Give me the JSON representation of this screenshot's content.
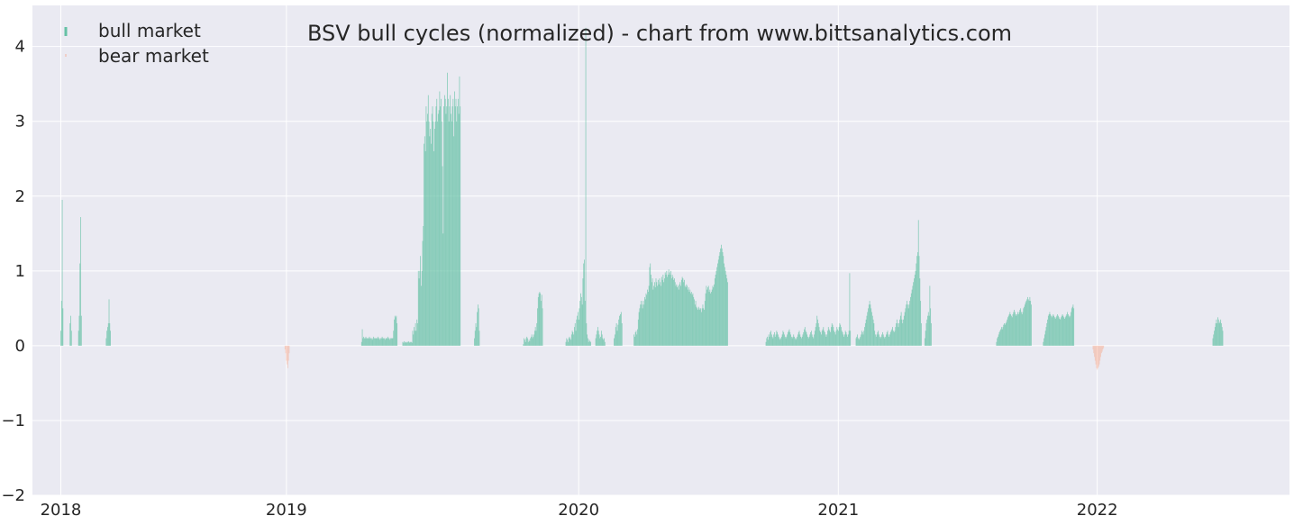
{
  "chart_data": {
    "type": "bar",
    "title": "BSV bull cycles (normalized)  - chart from www.bittsanalytics.com",
    "xlabel": "",
    "ylabel": "",
    "ylim": [
      -2,
      4.55
    ],
    "xlim": [
      "2017-11-22",
      "2022-09-29"
    ],
    "y_ticks": [
      -2,
      -1,
      0,
      1,
      2,
      3,
      4
    ],
    "y_tick_labels": [
      "−2",
      "−1",
      "0",
      "1",
      "2",
      "3",
      "4"
    ],
    "x_ticks": [
      "2018-01-01",
      "2018-11-15",
      "2020-01-01",
      "2021-01-01",
      "2022-01-01"
    ],
    "x_tick_labels": [
      "2018",
      "2019",
      "2020",
      "2021",
      "2022"
    ],
    "grid": true,
    "legend": {
      "placement": "top-left",
      "entries": [
        "bull market",
        "bear market"
      ]
    },
    "colors": {
      "background": "#EAEAF2",
      "grid": "#FFFFFF",
      "bull": "#66C2A5",
      "bear": "#FC8D62",
      "text": "#262626"
    },
    "series": [
      {
        "name": "bull market",
        "segments": [
          {
            "start": "2018-01-01",
            "end": "2018-01-04",
            "values": [
              0.2,
              0.6,
              1.95,
              0.5
            ]
          },
          {
            "start": "2018-01-14",
            "end": "2018-01-16",
            "values": [
              0.3,
              0.4,
              0.2
            ]
          },
          {
            "start": "2018-01-26",
            "end": "2018-01-30",
            "values": [
              0.2,
              0.4,
              1.1,
              1.72,
              0.4
            ]
          },
          {
            "start": "2018-03-06",
            "end": "2018-03-12",
            "values": [
              0.1,
              0.2,
              0.25,
              0.3,
              0.62,
              0.3,
              0.2
            ]
          },
          {
            "start": "2019-03-01",
            "end": "2019-04-20",
            "values": [
              0.05,
              0.22,
              0.1,
              0.12,
              0.1,
              0.1,
              0.12,
              0.1,
              0.1,
              0.1,
              0.1,
              0.12,
              0.1,
              0.1,
              0.1,
              0.08,
              0.1,
              0.12,
              0.1,
              0.1,
              0.1,
              0.1,
              0.1,
              0.12,
              0.1,
              0.1,
              0.08,
              0.1,
              0.1,
              0.12,
              0.1,
              0.1,
              0.1,
              0.08,
              0.1,
              0.1,
              0.1,
              0.12,
              0.1,
              0.1,
              0.08,
              0.1,
              0.1,
              0.1,
              0.1,
              0.2,
              0.35,
              0.4,
              0.38,
              0.4,
              0.3
            ]
          },
          {
            "start": "2019-04-28",
            "end": "2019-07-18",
            "values": [
              0.05,
              0.04,
              0.06,
              0.04,
              0.05,
              0.05,
              0.04,
              0.05,
              0.06,
              0.05,
              0.04,
              0.05,
              0.05,
              0.04,
              0.2,
              0.15,
              0.25,
              0.2,
              0.3,
              0.2,
              0.35,
              0.3,
              1.0,
              0.9,
              1.0,
              1.2,
              0.8,
              1.0,
              1.4,
              1.6,
              2.7,
              2.8,
              2.6,
              3.2,
              3.0,
              3.1,
              3.35,
              3.0,
              2.8,
              2.9,
              2.7,
              3.1,
              3.2,
              3.0,
              2.6,
              2.9,
              3.0,
              3.2,
              3.3,
              3.0,
              3.1,
              3.15,
              3.4,
              3.2,
              3.3,
              3.0,
              2.4,
              1.5,
              3.2,
              3.35,
              3.3,
              3.1,
              3.2,
              3.65,
              3.3,
              3.0,
              3.2,
              3.35,
              3.1,
              3.0,
              3.2,
              3.3,
              2.8,
              3.4,
              3.2,
              3.3,
              3.0,
              3.2,
              3.3,
              3.1,
              3.6,
              3.2
            ]
          },
          {
            "start": "2019-08-07",
            "end": "2019-08-14",
            "values": [
              0.1,
              0.2,
              0.3,
              0.25,
              0.45,
              0.55,
              0.5,
              0.2
            ]
          },
          {
            "start": "2019-10-15",
            "end": "2019-11-11",
            "values": [
              0.02,
              0.1,
              0.08,
              0.05,
              0.1,
              0.12,
              0.1,
              0.05,
              0.08,
              0.06,
              0.1,
              0.12,
              0.15,
              0.1,
              0.12,
              0.15,
              0.2,
              0.25,
              0.2,
              0.3,
              0.5,
              0.65,
              0.7,
              0.72,
              0.7,
              0.6,
              0.68,
              0.5
            ]
          },
          {
            "start": "2019-12-14",
            "end": "2020-01-18",
            "values": [
              0.05,
              0.1,
              0.08,
              0.05,
              0.1,
              0.12,
              0.1,
              0.08,
              0.15,
              0.2,
              0.18,
              0.15,
              0.25,
              0.3,
              0.2,
              0.35,
              0.4,
              0.45,
              0.35,
              0.5,
              0.6,
              0.7,
              0.65,
              0.55,
              0.9,
              1.1,
              1.15,
              0.6,
              4.25,
              0.3,
              0.15,
              0.1,
              0.05,
              0.08,
              0.06,
              0.05
            ]
          },
          {
            "start": "2020-01-25",
            "end": "2020-02-07",
            "values": [
              0.1,
              0.15,
              0.2,
              0.25,
              0.2,
              0.15,
              0.1,
              0.12,
              0.2,
              0.15,
              0.1,
              0.08,
              0.1,
              0.05
            ]
          },
          {
            "start": "2020-02-20",
            "end": "2020-03-02",
            "values": [
              0.1,
              0.15,
              0.25,
              0.3,
              0.2,
              0.28,
              0.35,
              0.4,
              0.42,
              0.45,
              0.3
            ]
          },
          {
            "start": "2020-03-19",
            "end": "2020-07-29",
            "values": [
              0.15,
              0.12,
              0.18,
              0.2,
              0.15,
              0.22,
              0.35,
              0.45,
              0.5,
              0.55,
              0.6,
              0.55,
              0.5,
              0.6,
              0.55,
              0.65,
              0.62,
              0.7,
              0.68,
              0.75,
              0.72,
              0.8,
              1.05,
              1.1,
              0.95,
              0.85,
              0.9,
              0.75,
              0.8,
              0.85,
              0.78,
              0.9,
              0.85,
              0.8,
              0.88,
              0.82,
              0.9,
              0.85,
              0.8,
              0.92,
              0.88,
              0.95,
              0.85,
              0.9,
              0.98,
              0.95,
              1.0,
              0.92,
              0.95,
              1.02,
              0.98,
              0.95,
              1.0,
              0.9,
              0.95,
              0.92,
              0.88,
              0.9,
              0.85,
              0.8,
              0.82,
              0.78,
              0.8,
              0.75,
              0.82,
              0.85,
              0.8,
              0.88,
              0.92,
              0.9,
              0.85,
              0.88,
              0.8,
              0.78,
              0.82,
              0.8,
              0.75,
              0.78,
              0.72,
              0.75,
              0.7,
              0.72,
              0.68,
              0.7,
              0.65,
              0.62,
              0.55,
              0.6,
              0.52,
              0.5,
              0.48,
              0.52,
              0.5,
              0.48,
              0.5,
              0.45,
              0.5,
              0.55,
              0.5,
              0.48,
              0.6,
              0.7,
              0.8,
              0.75,
              0.78,
              0.8,
              0.72,
              0.75,
              0.7,
              0.72,
              0.75,
              0.8,
              0.78,
              0.82,
              0.9,
              0.95,
              1.0,
              1.05,
              1.1,
              1.15,
              1.2,
              1.25,
              1.3,
              1.35,
              1.3,
              1.25,
              1.2,
              1.1,
              1.05,
              1.0,
              0.95,
              0.9,
              0.85
            ]
          },
          {
            "start": "2020-09-21",
            "end": "2021-01-18",
            "values": [
              0.05,
              0.1,
              0.12,
              0.08,
              0.15,
              0.12,
              0.18,
              0.2,
              0.15,
              0.12,
              0.1,
              0.15,
              0.18,
              0.12,
              0.15,
              0.2,
              0.18,
              0.15,
              0.12,
              0.1,
              0.08,
              0.1,
              0.12,
              0.15,
              0.2,
              0.18,
              0.15,
              0.12,
              0.1,
              0.12,
              0.15,
              0.18,
              0.2,
              0.22,
              0.18,
              0.15,
              0.12,
              0.1,
              0.12,
              0.15,
              0.12,
              0.1,
              0.08,
              0.1,
              0.12,
              0.15,
              0.18,
              0.2,
              0.15,
              0.12,
              0.1,
              0.12,
              0.15,
              0.18,
              0.22,
              0.25,
              0.2,
              0.18,
              0.15,
              0.12,
              0.1,
              0.12,
              0.15,
              0.18,
              0.2,
              0.15,
              0.12,
              0.1,
              0.15,
              0.2,
              0.25,
              0.3,
              0.4,
              0.35,
              0.3,
              0.25,
              0.2,
              0.18,
              0.15,
              0.2,
              0.22,
              0.25,
              0.2,
              0.18,
              0.15,
              0.12,
              0.15,
              0.2,
              0.25,
              0.22,
              0.2,
              0.18,
              0.25,
              0.3,
              0.28,
              0.25,
              0.2,
              0.18,
              0.15,
              0.2,
              0.25,
              0.22,
              0.2,
              0.25,
              0.3,
              0.28,
              0.25,
              0.2,
              0.18,
              0.15,
              0.12,
              0.15,
              0.2,
              0.18,
              0.15,
              0.12,
              0.15,
              0.2,
              0.97,
              0.2
            ]
          },
          {
            "start": "2021-01-26",
            "end": "2021-04-28",
            "values": [
              0.1,
              0.12,
              0.15,
              0.1,
              0.08,
              0.1,
              0.12,
              0.15,
              0.2,
              0.18,
              0.15,
              0.2,
              0.25,
              0.3,
              0.35,
              0.4,
              0.45,
              0.5,
              0.55,
              0.6,
              0.55,
              0.5,
              0.45,
              0.4,
              0.35,
              0.3,
              0.2,
              0.15,
              0.12,
              0.15,
              0.18,
              0.2,
              0.15,
              0.12,
              0.1,
              0.12,
              0.15,
              0.18,
              0.15,
              0.12,
              0.1,
              0.12,
              0.15,
              0.18,
              0.2,
              0.15,
              0.12,
              0.15,
              0.18,
              0.2,
              0.22,
              0.25,
              0.2,
              0.18,
              0.2,
              0.25,
              0.3,
              0.35,
              0.3,
              0.25,
              0.3,
              0.35,
              0.4,
              0.45,
              0.35,
              0.3,
              0.35,
              0.4,
              0.45,
              0.5,
              0.55,
              0.6,
              0.55,
              0.5,
              0.55,
              0.6,
              0.65,
              0.7,
              0.75,
              0.8,
              0.85,
              0.9,
              0.95,
              1.0,
              1.1,
              1.2,
              1.25,
              1.68,
              1.2,
              0.9,
              0.6,
              0.3
            ]
          },
          {
            "start": "2021-05-03",
            "end": "2021-05-12",
            "values": [
              0.1,
              0.2,
              0.3,
              0.35,
              0.4,
              0.45,
              0.4,
              0.8,
              0.5,
              0.3
            ]
          },
          {
            "start": "2021-08-12",
            "end": "2021-09-30",
            "values": [
              0.05,
              0.1,
              0.12,
              0.15,
              0.18,
              0.2,
              0.22,
              0.25,
              0.22,
              0.25,
              0.28,
              0.3,
              0.28,
              0.3,
              0.32,
              0.35,
              0.38,
              0.4,
              0.42,
              0.45,
              0.42,
              0.4,
              0.38,
              0.42,
              0.45,
              0.48,
              0.45,
              0.42,
              0.4,
              0.42,
              0.45,
              0.42,
              0.45,
              0.48,
              0.5,
              0.45,
              0.42,
              0.45,
              0.5,
              0.52,
              0.55,
              0.58,
              0.6,
              0.62,
              0.65,
              0.62,
              0.6,
              0.65,
              0.6,
              0.55
            ]
          },
          {
            "start": "2021-10-17",
            "end": "2021-11-29",
            "values": [
              0.05,
              0.1,
              0.15,
              0.2,
              0.25,
              0.3,
              0.35,
              0.4,
              0.42,
              0.45,
              0.42,
              0.4,
              0.38,
              0.4,
              0.42,
              0.4,
              0.38,
              0.36,
              0.38,
              0.4,
              0.42,
              0.4,
              0.38,
              0.36,
              0.35,
              0.38,
              0.4,
              0.42,
              0.4,
              0.38,
              0.36,
              0.38,
              0.4,
              0.42,
              0.45,
              0.42,
              0.4,
              0.38,
              0.4,
              0.45,
              0.5,
              0.52,
              0.55,
              0.5
            ]
          },
          {
            "start": "2022-06-13",
            "end": "2022-06-27",
            "values": [
              0.1,
              0.15,
              0.2,
              0.25,
              0.3,
              0.35,
              0.3,
              0.38,
              0.35,
              0.3,
              0.32,
              0.35,
              0.3,
              0.25,
              0.2
            ]
          }
        ]
      },
      {
        "name": "bear market",
        "segments": [
          {
            "start": "2018-11-13",
            "end": "2018-11-19",
            "values": [
              -0.05,
              -0.1,
              -0.2,
              -0.25,
              -0.3,
              -0.2,
              -0.1
            ]
          },
          {
            "start": "2021-12-26",
            "end": "2022-01-10",
            "values": [
              -0.05,
              -0.1,
              -0.15,
              -0.2,
              -0.25,
              -0.3,
              -0.32,
              -0.3,
              -0.28,
              -0.25,
              -0.2,
              -0.15,
              -0.1,
              -0.08,
              -0.05,
              -0.03
            ]
          }
        ]
      }
    ]
  }
}
